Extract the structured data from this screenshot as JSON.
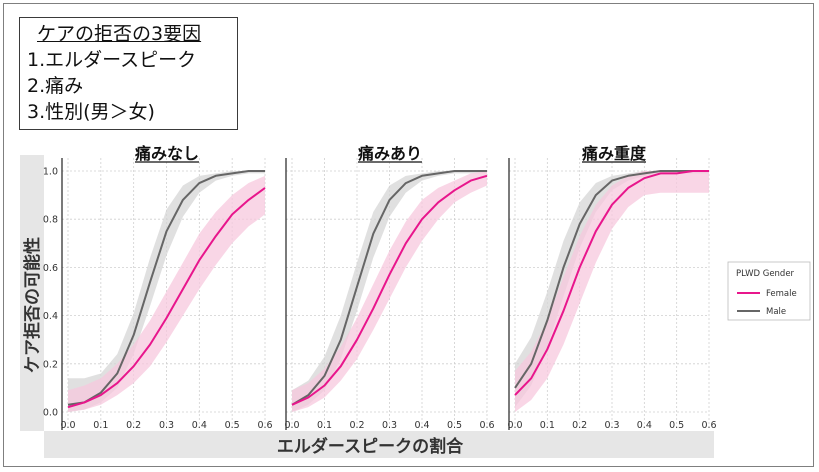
{
  "note": {
    "title": "ケアの拒否の3要因",
    "items": [
      "1.エルダースピーク",
      "2.痛み",
      "3.性別(男＞女)"
    ]
  },
  "chart_data": {
    "type": "line",
    "xlabel": "エルダースピークの割合",
    "ylabel": "ケア拒否の可能性",
    "xlim": [
      0.0,
      0.6
    ],
    "ylim": [
      0.0,
      1.0
    ],
    "xticks": [
      "0.0",
      "0.1",
      "0.2",
      "0.3",
      "0.4",
      "0.5",
      "0.6"
    ],
    "yticks": [
      "0.0",
      "0.2",
      "0.4",
      "0.6",
      "0.8",
      "1.0"
    ],
    "grid": true,
    "legend": {
      "title": "PLWD Gender",
      "position": "right",
      "entries": [
        "Female",
        "Male"
      ]
    },
    "colors": {
      "Female": "#e8168c",
      "Male": "#666666",
      "Female_band": "#f7c8dd",
      "Male_band": "#d6d6d6"
    },
    "x": [
      0.0,
      0.05,
      0.1,
      0.15,
      0.2,
      0.25,
      0.3,
      0.35,
      0.4,
      0.45,
      0.5,
      0.55,
      0.6
    ],
    "panels": [
      {
        "title": "痛みなし",
        "series": [
          {
            "name": "Female",
            "values": [
              0.02,
              0.04,
              0.07,
              0.12,
              0.19,
              0.28,
              0.39,
              0.51,
              0.63,
              0.73,
              0.82,
              0.88,
              0.93
            ],
            "lower": [
              0.0,
              0.01,
              0.03,
              0.07,
              0.12,
              0.19,
              0.29,
              0.4,
              0.51,
              0.61,
              0.7,
              0.77,
              0.82
            ],
            "upper": [
              0.09,
              0.11,
              0.14,
              0.2,
              0.28,
              0.38,
              0.5,
              0.62,
              0.74,
              0.83,
              0.9,
              0.95,
              0.98
            ]
          },
          {
            "name": "Male",
            "values": [
              0.03,
              0.04,
              0.08,
              0.16,
              0.32,
              0.54,
              0.75,
              0.88,
              0.95,
              0.98,
              0.99,
              1.0,
              1.0
            ],
            "lower": [
              0.0,
              0.01,
              0.04,
              0.1,
              0.24,
              0.44,
              0.65,
              0.81,
              0.91,
              0.96,
              0.98,
              0.99,
              0.99
            ],
            "upper": [
              0.14,
              0.14,
              0.16,
              0.24,
              0.41,
              0.64,
              0.84,
              0.94,
              0.98,
              0.99,
              1.0,
              1.0,
              1.0
            ]
          }
        ]
      },
      {
        "title": "痛みあり",
        "series": [
          {
            "name": "Female",
            "values": [
              0.03,
              0.06,
              0.11,
              0.19,
              0.3,
              0.43,
              0.57,
              0.7,
              0.8,
              0.87,
              0.92,
              0.96,
              0.98
            ],
            "lower": [
              0.0,
              0.02,
              0.06,
              0.13,
              0.22,
              0.34,
              0.47,
              0.6,
              0.71,
              0.8,
              0.87,
              0.91,
              0.94
            ],
            "upper": [
              0.09,
              0.12,
              0.18,
              0.27,
              0.39,
              0.53,
              0.67,
              0.79,
              0.88,
              0.93,
              0.96,
              0.99,
              1.0
            ]
          },
          {
            "name": "Male",
            "values": [
              0.03,
              0.07,
              0.15,
              0.3,
              0.52,
              0.74,
              0.88,
              0.95,
              0.98,
              0.99,
              1.0,
              1.0,
              1.0
            ],
            "lower": [
              0.0,
              0.03,
              0.09,
              0.22,
              0.42,
              0.64,
              0.81,
              0.91,
              0.96,
              0.98,
              0.99,
              0.99,
              0.99
            ],
            "upper": [
              0.09,
              0.13,
              0.23,
              0.4,
              0.62,
              0.83,
              0.94,
              0.98,
              0.99,
              1.0,
              1.0,
              1.0,
              1.0
            ]
          }
        ]
      },
      {
        "title": "痛み重度",
        "series": [
          {
            "name": "Female",
            "values": [
              0.07,
              0.14,
              0.26,
              0.42,
              0.6,
              0.75,
              0.86,
              0.93,
              0.97,
              0.99,
              0.99,
              1.0,
              1.0
            ],
            "lower": [
              0.0,
              0.05,
              0.14,
              0.28,
              0.45,
              0.62,
              0.76,
              0.85,
              0.9,
              0.91,
              0.91,
              0.91,
              0.91
            ],
            "upper": [
              0.17,
              0.25,
              0.38,
              0.56,
              0.73,
              0.86,
              0.94,
              0.98,
              1.0,
              1.0,
              1.0,
              1.0,
              1.0
            ]
          },
          {
            "name": "Male",
            "values": [
              0.1,
              0.2,
              0.38,
              0.6,
              0.78,
              0.9,
              0.96,
              0.98,
              0.99,
              1.0,
              1.0,
              1.0,
              1.0
            ],
            "lower": [
              0.02,
              0.11,
              0.27,
              0.48,
              0.68,
              0.83,
              0.92,
              0.96,
              0.98,
              0.99,
              0.99,
              0.99,
              0.99
            ],
            "upper": [
              0.2,
              0.31,
              0.5,
              0.71,
              0.87,
              0.95,
              0.98,
              0.99,
              1.0,
              1.0,
              1.0,
              1.0,
              1.0
            ]
          }
        ]
      }
    ]
  }
}
